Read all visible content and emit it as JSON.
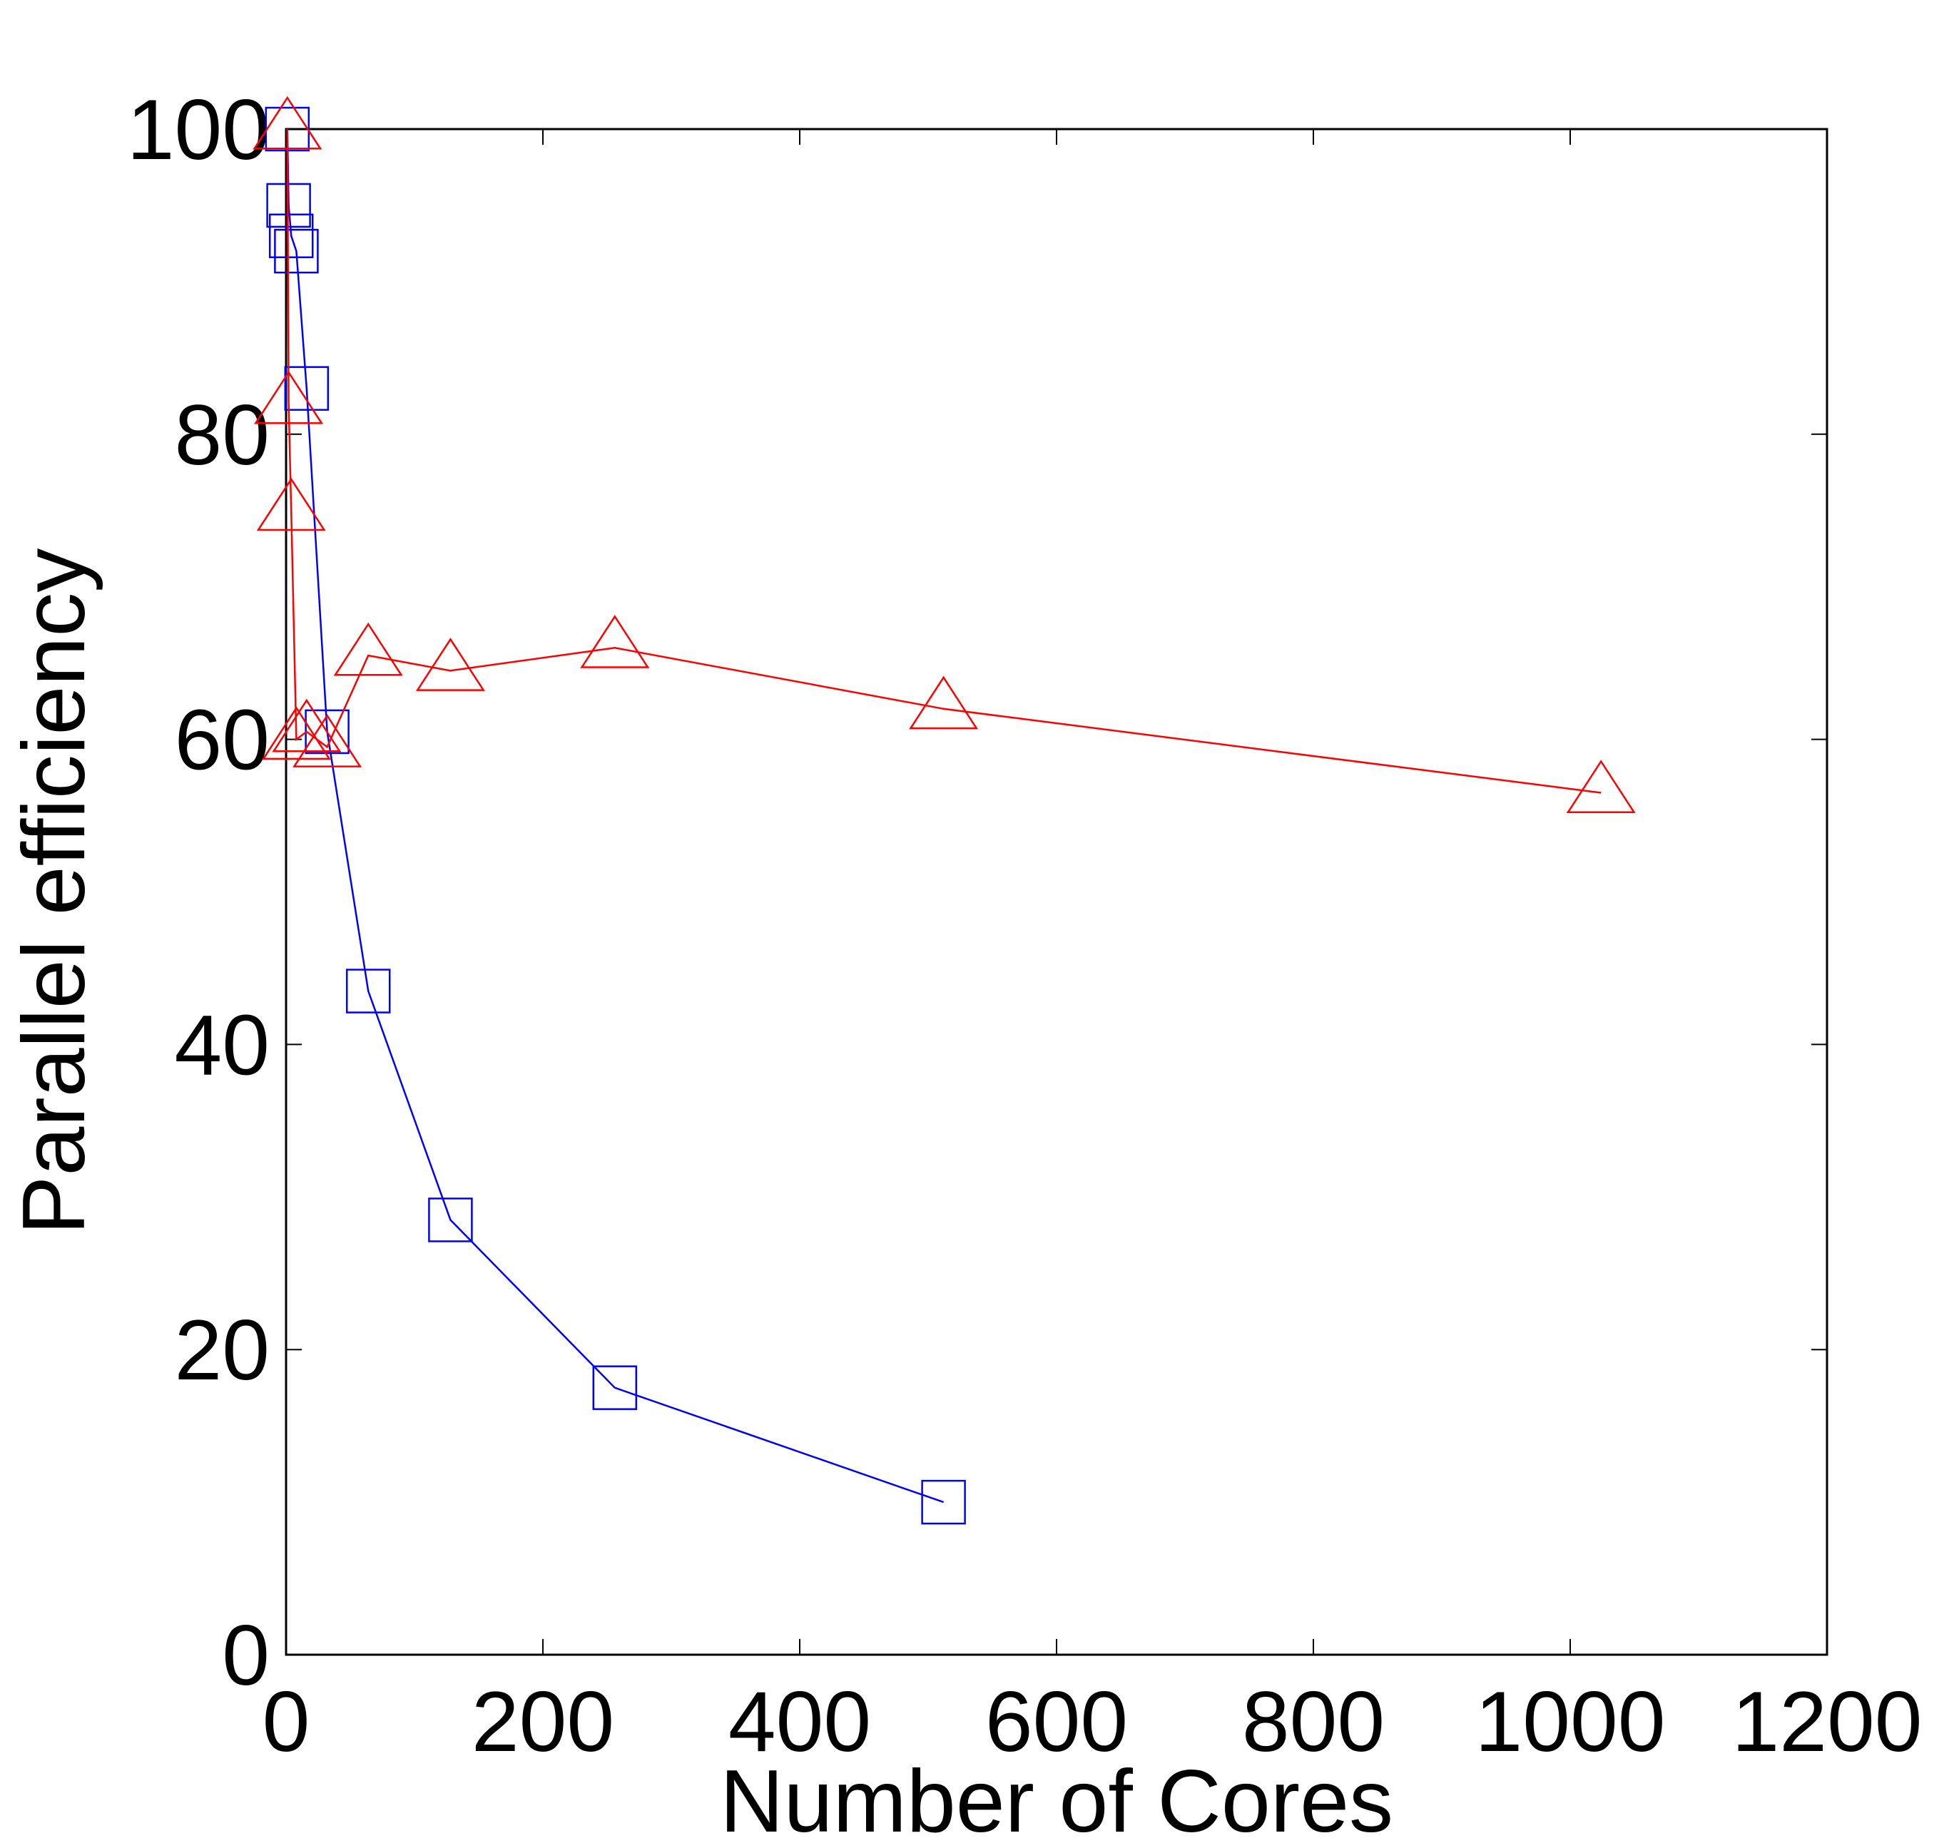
{
  "chart_data": {
    "type": "line",
    "title": "",
    "xlabel": "Number of Cores",
    "ylabel": "Parallel efficiency",
    "xlim": [
      0,
      1200
    ],
    "ylim": [
      0,
      100
    ],
    "xticks": [
      0,
      200,
      400,
      600,
      800,
      1000,
      1200
    ],
    "yticks": [
      0,
      20,
      40,
      60,
      80,
      100
    ],
    "grid": false,
    "legend": "none",
    "series": [
      {
        "color": "#0000ff",
        "marker": "square",
        "x": [
          1,
          2,
          4,
          8,
          16,
          32,
          64,
          128,
          256,
          512
        ],
        "y": [
          100,
          95,
          93,
          92,
          83,
          60.5,
          43.5,
          28.5,
          17.5,
          10
        ]
      },
      {
        "color": "#ff0000",
        "marker": "triangle",
        "x": [
          1,
          2,
          4,
          8,
          16,
          32,
          64,
          128,
          256,
          512,
          1024
        ],
        "y": [
          100,
          82,
          75,
          60,
          60.5,
          59.5,
          65.5,
          64.5,
          66,
          62,
          56.5
        ]
      }
    ]
  }
}
